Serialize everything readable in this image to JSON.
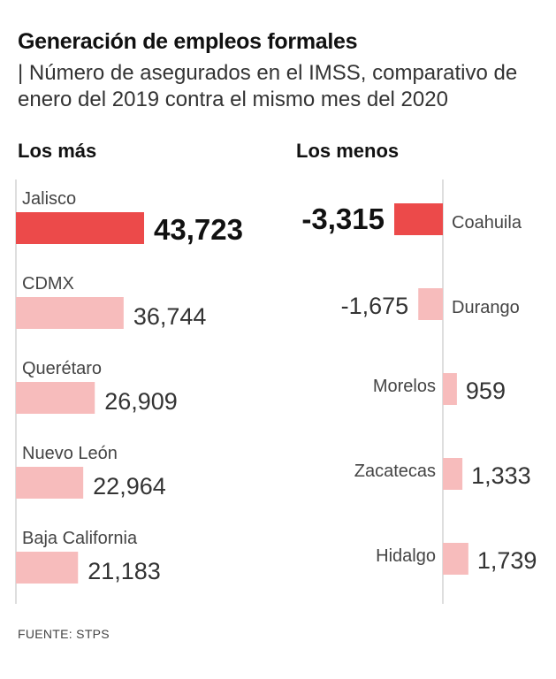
{
  "title": "Generación de empleos formales",
  "subtitle": "| Número de asegurados en el IMSS, comparativo de enero del 2019 contra el mismo mes del 2020",
  "source": "FUENTE: STPS",
  "colors": {
    "highlight": "#ec4a4a",
    "light": "#f7bcbc",
    "axis": "#bdbdbd"
  },
  "chart_data": [
    {
      "type": "bar",
      "orientation": "horizontal",
      "title": "Los más",
      "categories": [
        "Jalisco",
        "CDMX",
        "Querétaro",
        "Nuevo León",
        "Baja California"
      ],
      "values": [
        43723,
        36744,
        26909,
        22964,
        21183
      ],
      "value_labels": [
        "43,723",
        "36,744",
        "26,909",
        "22,964",
        "21,183"
      ],
      "highlight_index": 0
    },
    {
      "type": "bar",
      "orientation": "horizontal",
      "title": "Los menos",
      "categories": [
        "Coahuila",
        "Durango",
        "Morelos",
        "Zacatecas",
        "Hidalgo"
      ],
      "values": [
        -3315,
        -1675,
        959,
        1333,
        1739
      ],
      "value_labels": [
        "-3,315",
        "-1,675",
        "959",
        "1,333",
        "1,739"
      ],
      "highlight_index": 0
    }
  ]
}
